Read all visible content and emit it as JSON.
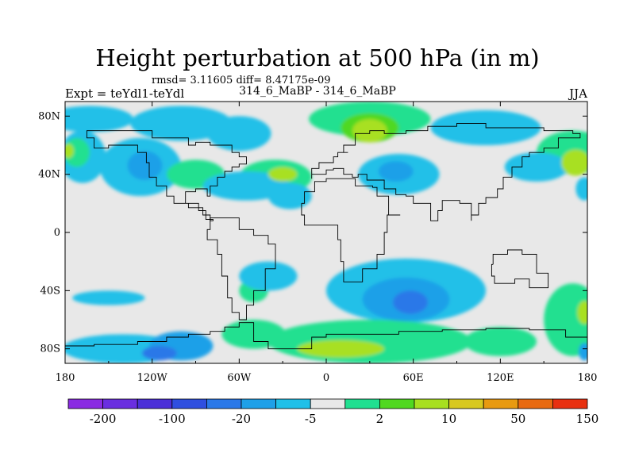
{
  "chart_data": {
    "type": "heatmap",
    "title": "Height perturbation at 500 hPa (in m)",
    "stats_line": "rmsd= 3.11605 diff= 8.47175e-09",
    "left_label": "Expt = teYdl1-teYdl",
    "center_label": "314_6_MaBP - 314_6_MaBP",
    "right_label": "JJA",
    "x_ticks": [
      {
        "lon": -180,
        "label": "180"
      },
      {
        "lon": -120,
        "label": "120W"
      },
      {
        "lon": -60,
        "label": "60W"
      },
      {
        "lon": 0,
        "label": "0"
      },
      {
        "lon": 60,
        "label": "60E"
      },
      {
        "lon": 120,
        "label": "120E"
      },
      {
        "lon": 180,
        "label": "180"
      }
    ],
    "y_ticks": [
      {
        "lat": 80,
        "label": "80N"
      },
      {
        "lat": 40,
        "label": "40N"
      },
      {
        "lat": 0,
        "label": "0"
      },
      {
        "lat": -40,
        "label": "40S"
      },
      {
        "lat": -80,
        "label": "80S"
      }
    ],
    "xlim": [
      -180,
      180
    ],
    "ylim": [
      -90,
      90
    ],
    "colorbar": {
      "colors": [
        "#8a2be2",
        "#6a2ee0",
        "#4b2fd8",
        "#2f4fe0",
        "#2a78e8",
        "#1ea0e8",
        "#20c0e8",
        "#e8e8e8",
        "#20e090",
        "#50d820",
        "#a8e020",
        "#d8c820",
        "#e89a10",
        "#e86a10",
        "#e83010"
      ],
      "labels": [
        {
          "boundary": 1,
          "text": "-200"
        },
        {
          "boundary": 3,
          "text": "-100"
        },
        {
          "boundary": 5,
          "text": "-20"
        },
        {
          "boundary": 7,
          "text": "-5"
        },
        {
          "boundary": 9,
          "text": "2"
        },
        {
          "boundary": 11,
          "text": "10"
        },
        {
          "boundary": 13,
          "text": "50"
        },
        {
          "boundary": 15,
          "text": "150"
        }
      ]
    },
    "blobs": [
      {
        "lon": -168,
        "lat": 52,
        "rx": 16,
        "ry": 18,
        "level": 6
      },
      {
        "lon": -172,
        "lat": 55,
        "rx": 9,
        "ry": 10,
        "level": 8
      },
      {
        "lon": -178,
        "lat": 56,
        "rx": 4,
        "ry": 5,
        "level": 10
      },
      {
        "lon": -128,
        "lat": 45,
        "rx": 28,
        "ry": 20,
        "level": 6
      },
      {
        "lon": -125,
        "lat": 46,
        "rx": 12,
        "ry": 10,
        "level": 5
      },
      {
        "lon": -163,
        "lat": 78,
        "rx": 30,
        "ry": 9,
        "level": 6
      },
      {
        "lon": -100,
        "lat": 75,
        "rx": 35,
        "ry": 12,
        "level": 6
      },
      {
        "lon": -60,
        "lat": 68,
        "rx": 22,
        "ry": 12,
        "level": 6
      },
      {
        "lon": -90,
        "lat": 40,
        "rx": 20,
        "ry": 10,
        "level": 8
      },
      {
        "lon": -35,
        "lat": 38,
        "rx": 25,
        "ry": 12,
        "level": 8
      },
      {
        "lon": -30,
        "lat": 40,
        "rx": 10,
        "ry": 5,
        "level": 10
      },
      {
        "lon": -55,
        "lat": 32,
        "rx": 30,
        "ry": 10,
        "level": 6
      },
      {
        "lon": -25,
        "lat": 25,
        "rx": 15,
        "ry": 9,
        "level": 6
      },
      {
        "lon": 30,
        "lat": 78,
        "rx": 42,
        "ry": 12,
        "level": 8
      },
      {
        "lon": 30,
        "lat": 72,
        "rx": 20,
        "ry": 10,
        "level": 9
      },
      {
        "lon": 30,
        "lat": 70,
        "rx": 12,
        "ry": 8,
        "level": 10
      },
      {
        "lon": 50,
        "lat": 40,
        "rx": 28,
        "ry": 14,
        "level": 6
      },
      {
        "lon": 48,
        "lat": 42,
        "rx": 12,
        "ry": 7,
        "level": 5
      },
      {
        "lon": 110,
        "lat": 72,
        "rx": 38,
        "ry": 12,
        "level": 6
      },
      {
        "lon": 170,
        "lat": 55,
        "rx": 25,
        "ry": 15,
        "level": 8
      },
      {
        "lon": 172,
        "lat": 48,
        "rx": 10,
        "ry": 9,
        "level": 10
      },
      {
        "lon": 145,
        "lat": 45,
        "rx": 22,
        "ry": 10,
        "level": 6
      },
      {
        "lon": 178,
        "lat": 30,
        "rx": 6,
        "ry": 8,
        "level": 6
      },
      {
        "lon": 55,
        "lat": -40,
        "rx": 55,
        "ry": 22,
        "level": 6
      },
      {
        "lon": 55,
        "lat": -46,
        "rx": 30,
        "ry": 15,
        "level": 5
      },
      {
        "lon": 58,
        "lat": -48,
        "rx": 12,
        "ry": 8,
        "level": 4
      },
      {
        "lon": 30,
        "lat": -75,
        "rx": 70,
        "ry": 15,
        "level": 8
      },
      {
        "lon": 10,
        "lat": -80,
        "rx": 30,
        "ry": 6,
        "level": 10
      },
      {
        "lon": 120,
        "lat": -75,
        "rx": 25,
        "ry": 10,
        "level": 8
      },
      {
        "lon": -140,
        "lat": -80,
        "rx": 42,
        "ry": 10,
        "level": 6
      },
      {
        "lon": -100,
        "lat": -78,
        "rx": 22,
        "ry": 10,
        "level": 5
      },
      {
        "lon": -115,
        "lat": -83,
        "rx": 12,
        "ry": 5,
        "level": 4
      },
      {
        "lon": -50,
        "lat": -70,
        "rx": 22,
        "ry": 10,
        "level": 8
      },
      {
        "lon": -50,
        "lat": -40,
        "rx": 10,
        "ry": 8,
        "level": 8
      },
      {
        "lon": -150,
        "lat": -45,
        "rx": 25,
        "ry": 5,
        "level": 6
      },
      {
        "lon": 170,
        "lat": -60,
        "rx": 20,
        "ry": 25,
        "level": 8
      },
      {
        "lon": 178,
        "lat": -55,
        "rx": 5,
        "ry": 8,
        "level": 10
      },
      {
        "lon": 178,
        "lat": -82,
        "rx": 4,
        "ry": 6,
        "level": 5
      },
      {
        "lon": -40,
        "lat": -30,
        "rx": 20,
        "ry": 10,
        "level": 6
      }
    ],
    "coastline": [
      [
        [
          -180,
          -78
        ],
        [
          -160,
          -77
        ],
        [
          -130,
          -75
        ],
        [
          -110,
          -72
        ],
        [
          -95,
          -70
        ],
        [
          -80,
          -68
        ],
        [
          -70,
          -65
        ],
        [
          -60,
          -62
        ],
        [
          -50,
          -75
        ],
        [
          -40,
          -80
        ],
        [
          -10,
          -72
        ],
        [
          0,
          -70
        ],
        [
          20,
          -70
        ],
        [
          50,
          -68
        ],
        [
          80,
          -67
        ],
        [
          110,
          -66
        ],
        [
          140,
          -67
        ],
        [
          165,
          -72
        ],
        [
          180,
          -78
        ]
      ],
      [
        [
          -60,
          -60
        ],
        [
          -55,
          -50
        ],
        [
          -50,
          -40
        ],
        [
          -42,
          -25
        ],
        [
          -35,
          -8
        ],
        [
          -40,
          -2
        ],
        [
          -50,
          2
        ],
        [
          -60,
          10
        ],
        [
          -75,
          10
        ],
        [
          -80,
          2
        ],
        [
          -82,
          -5
        ],
        [
          -75,
          -15
        ],
        [
          -72,
          -30
        ],
        [
          -68,
          -45
        ],
        [
          -65,
          -55
        ],
        [
          -60,
          -60
        ]
      ],
      [
        [
          -17,
          20
        ],
        [
          -15,
          28
        ],
        [
          -8,
          35
        ],
        [
          0,
          37
        ],
        [
          10,
          37
        ],
        [
          20,
          32
        ],
        [
          32,
          31
        ],
        [
          35,
          25
        ],
        [
          43,
          12
        ],
        [
          51,
          12
        ],
        [
          42,
          0
        ],
        [
          40,
          -15
        ],
        [
          35,
          -25
        ],
        [
          25,
          -34
        ],
        [
          18,
          -34
        ],
        [
          12,
          -20
        ],
        [
          10,
          -5
        ],
        [
          8,
          5
        ],
        [
          -5,
          5
        ],
        [
          -15,
          12
        ],
        [
          -17,
          20
        ]
      ],
      [
        [
          -10,
          37
        ],
        [
          -10,
          44
        ],
        [
          -5,
          48
        ],
        [
          5,
          52
        ],
        [
          8,
          55
        ],
        [
          15,
          55
        ],
        [
          12,
          60
        ],
        [
          20,
          68
        ],
        [
          30,
          70
        ],
        [
          40,
          68
        ],
        [
          55,
          70
        ],
        [
          70,
          73
        ],
        [
          90,
          75
        ],
        [
          110,
          72
        ],
        [
          130,
          72
        ],
        [
          150,
          70
        ],
        [
          170,
          68
        ],
        [
          175,
          65
        ],
        [
          160,
          58
        ],
        [
          150,
          55
        ],
        [
          140,
          52
        ],
        [
          135,
          45
        ],
        [
          128,
          38
        ],
        [
          122,
          30
        ],
        [
          118,
          24
        ],
        [
          110,
          20
        ],
        [
          105,
          12
        ],
        [
          100,
          8
        ],
        [
          100,
          20
        ],
        [
          92,
          22
        ],
        [
          88,
          22
        ],
        [
          80,
          15
        ],
        [
          77,
          8
        ],
        [
          72,
          20
        ],
        [
          60,
          25
        ],
        [
          55,
          26
        ],
        [
          48,
          30
        ],
        [
          40,
          36
        ],
        [
          35,
          36
        ],
        [
          28,
          40
        ],
        [
          22,
          38
        ],
        [
          18,
          40
        ],
        [
          12,
          44
        ],
        [
          5,
          43
        ],
        [
          0,
          40
        ],
        [
          -10,
          37
        ]
      ],
      [
        [
          115,
          -22
        ],
        [
          114,
          -30
        ],
        [
          116,
          -35
        ],
        [
          130,
          -32
        ],
        [
          140,
          -38
        ],
        [
          150,
          -38
        ],
        [
          153,
          -28
        ],
        [
          145,
          -15
        ],
        [
          135,
          -12
        ],
        [
          125,
          -15
        ],
        [
          115,
          -22
        ]
      ],
      [
        [
          -140,
          60
        ],
        [
          -130,
          55
        ],
        [
          -124,
          48
        ],
        [
          -122,
          38
        ],
        [
          -117,
          32
        ],
        [
          -110,
          25
        ],
        [
          -105,
          20
        ],
        [
          -95,
          17
        ],
        [
          -85,
          12
        ],
        [
          -80,
          8
        ],
        [
          -78,
          9
        ],
        [
          -83,
          15
        ],
        [
          -88,
          20
        ],
        [
          -97,
          25
        ],
        [
          -97,
          28
        ],
        [
          -90,
          30
        ],
        [
          -82,
          25
        ],
        [
          -80,
          32
        ],
        [
          -75,
          38
        ],
        [
          -70,
          42
        ],
        [
          -65,
          45
        ],
        [
          -60,
          47
        ],
        [
          -55,
          52
        ],
        [
          -60,
          55
        ],
        [
          -65,
          60
        ],
        [
          -80,
          62
        ],
        [
          -90,
          60
        ],
        [
          -95,
          65
        ],
        [
          -120,
          70
        ],
        [
          -140,
          70
        ],
        [
          -160,
          70
        ],
        [
          -165,
          65
        ],
        [
          -160,
          58
        ],
        [
          -150,
          60
        ],
        [
          -140,
          60
        ]
      ]
    ]
  }
}
